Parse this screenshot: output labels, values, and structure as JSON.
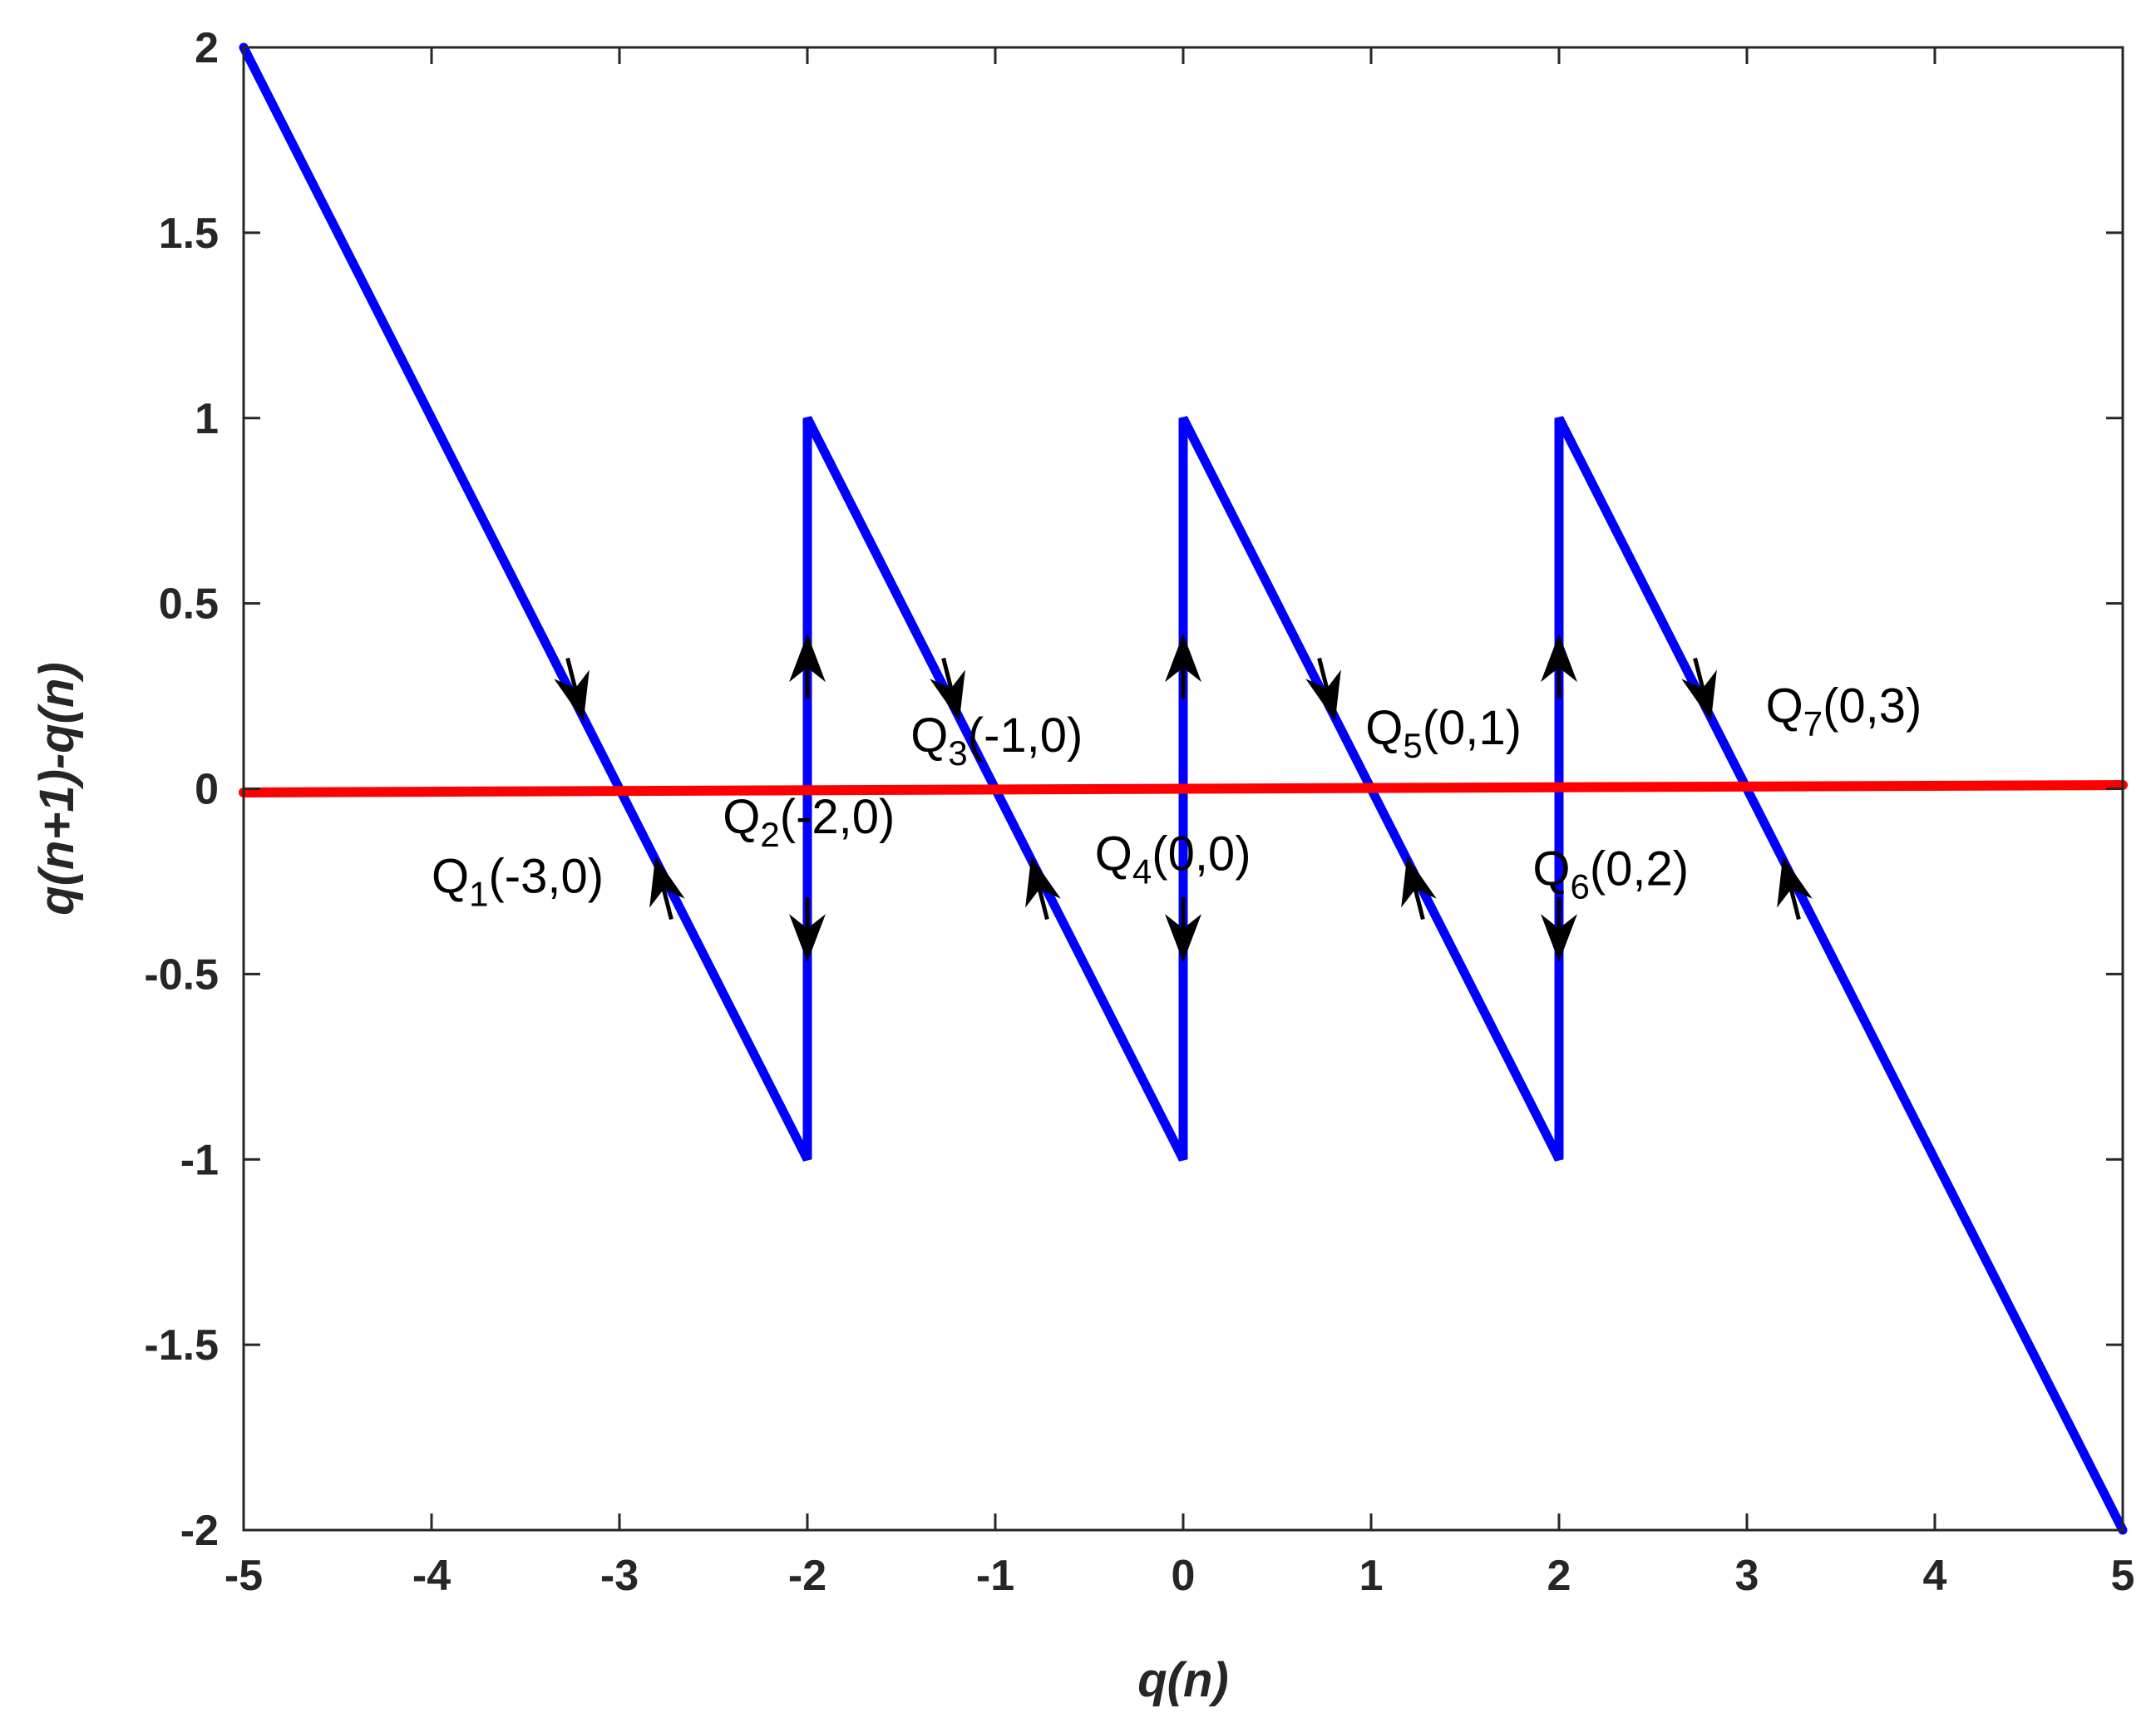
{
  "chart_data": {
    "type": "line",
    "title": "",
    "xlabel": "q(n)",
    "ylabel": "q(n+1)-q(n)",
    "xlim": [
      -5,
      5
    ],
    "ylim": [
      -2,
      2
    ],
    "grid": false,
    "x_ticks": [
      -5,
      -4,
      -3,
      -2,
      -1,
      0,
      1,
      2,
      3,
      4,
      5
    ],
    "y_ticks": [
      -2,
      -1.5,
      -1,
      -0.5,
      0,
      0.5,
      1,
      1.5,
      2
    ],
    "x_tick_labels": [
      "-5",
      "-4",
      "-3",
      "-2",
      "-1",
      "0",
      "1",
      "2",
      "3",
      "4",
      "5"
    ],
    "y_tick_labels": [
      "-2",
      "-1.5",
      "-1",
      "-0.5",
      "0",
      "0.5",
      "1",
      "1.5",
      "2"
    ],
    "series": [
      {
        "color": "#0000ff",
        "x": [
          -5,
          -2,
          -2,
          0,
          0,
          2,
          2,
          5
        ],
        "y": [
          2,
          -1,
          1,
          -1,
          1,
          -1,
          1,
          -2
        ]
      },
      {
        "color": "#ff0000",
        "x": [
          -5,
          5
        ],
        "y": [
          -0.01,
          0.01
        ]
      }
    ],
    "arrows": [
      {
        "x": -3.2,
        "y": 0.2,
        "dir": "toward-zero"
      },
      {
        "x": -2.8,
        "y": -0.2,
        "dir": "toward-zero"
      },
      {
        "x": -2,
        "y": 0.4,
        "dir": "up"
      },
      {
        "x": -2,
        "y": -0.45,
        "dir": "down"
      },
      {
        "x": -1.2,
        "y": 0.2,
        "dir": "toward-zero"
      },
      {
        "x": -0.8,
        "y": -0.2,
        "dir": "toward-zero"
      },
      {
        "x": 0,
        "y": 0.4,
        "dir": "up"
      },
      {
        "x": 0,
        "y": -0.45,
        "dir": "down"
      },
      {
        "x": 0.8,
        "y": 0.2,
        "dir": "toward-zero"
      },
      {
        "x": 1.2,
        "y": -0.2,
        "dir": "toward-zero"
      },
      {
        "x": 2,
        "y": 0.4,
        "dir": "up"
      },
      {
        "x": 2,
        "y": -0.45,
        "dir": "down"
      },
      {
        "x": 2.8,
        "y": 0.2,
        "dir": "toward-zero"
      },
      {
        "x": 3.2,
        "y": -0.2,
        "dir": "toward-zero"
      }
    ],
    "annotations": [
      {
        "letter": "Q",
        "sub": "1",
        "rest": "(-3,0)",
        "x": -4.0,
        "y": -0.28
      },
      {
        "letter": "Q",
        "sub": "2",
        "rest": "(-2,0)",
        "x": -2.45,
        "y": -0.12
      },
      {
        "letter": "Q",
        "sub": "3",
        "rest": "(-1,0)",
        "x": -1.45,
        "y": 0.1
      },
      {
        "letter": "Q",
        "sub": "4",
        "rest": "(0,0)",
        "x": -0.47,
        "y": -0.22
      },
      {
        "letter": "Q",
        "sub": "5",
        "rest": "(0,1)",
        "x": 0.97,
        "y": 0.12
      },
      {
        "letter": "Q",
        "sub": "6",
        "rest": "(0,2)",
        "x": 1.86,
        "y": -0.26
      },
      {
        "letter": "Q",
        "sub": "7",
        "rest": "(0,3)",
        "x": 3.1,
        "y": 0.18
      }
    ]
  }
}
